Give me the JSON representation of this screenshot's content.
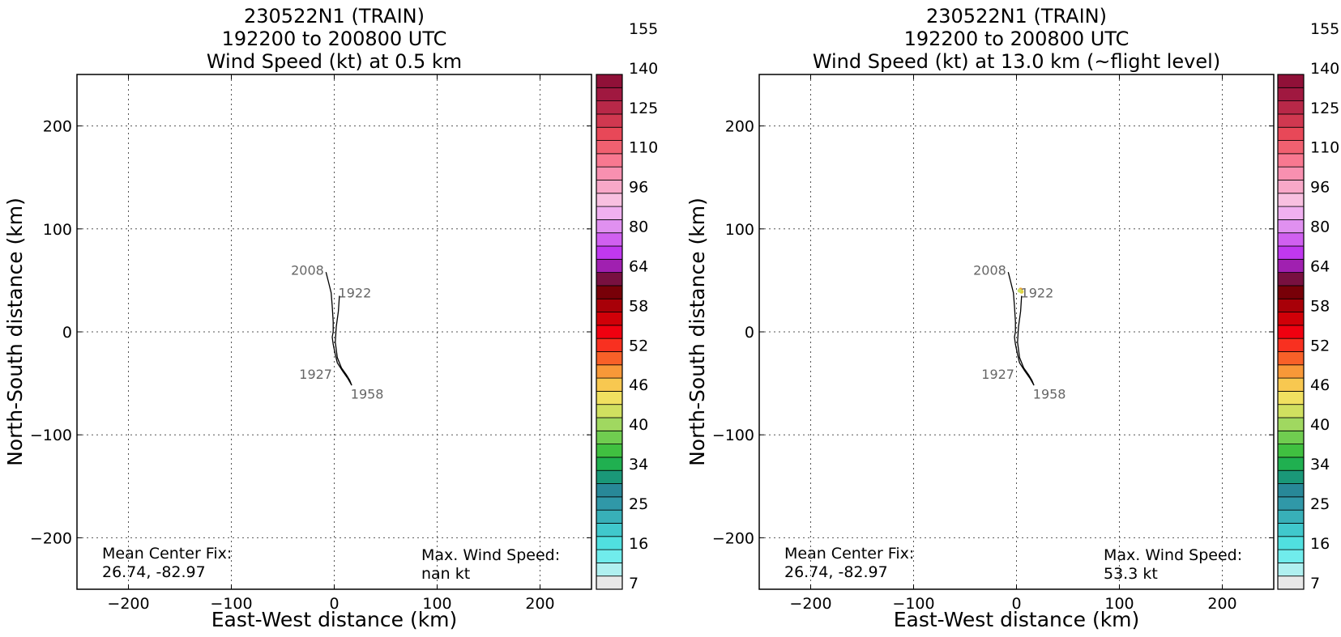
{
  "colorbar": {
    "colors": [
      "#e8e8e8",
      "#b0f0f0",
      "#70ecec",
      "#50e0e0",
      "#40c8cc",
      "#38b0b8",
      "#3098a8",
      "#288898",
      "#1a9878",
      "#20b050",
      "#40c040",
      "#70cc50",
      "#a0d860",
      "#d0e060",
      "#f0e060",
      "#f8c850",
      "#f89838",
      "#f86028",
      "#f83020",
      "#f00010",
      "#d00008",
      "#a80008",
      "#780008",
      "#781040",
      "#a020b0",
      "#c038f0",
      "#d060f0",
      "#e090f0",
      "#f0b0f0",
      "#f8c0e0",
      "#f8a8c8",
      "#f890b0",
      "#f87890",
      "#f06070",
      "#e84858",
      "#d03850",
      "#b82848",
      "#a01840",
      "#901038"
    ],
    "tick_labels": [
      "7",
      "16",
      "25",
      "34",
      "40",
      "46",
      "52",
      "58",
      "64",
      "80",
      "96",
      "110",
      "125",
      "140",
      "155"
    ]
  },
  "labels": {
    "ylabel": "North-South distance (km)",
    "xlabel": "East-West distance (km)",
    "xticks": [
      "−200",
      "−100",
      "0",
      "100",
      "200"
    ],
    "yticks": [
      "200",
      "100",
      "0",
      "−100",
      "−200"
    ]
  },
  "chart_data": [
    {
      "type": "line",
      "title_lines": [
        "230522N1 (TRAIN)",
        "192200 to 200800 UTC",
        "Wind Speed (kt) at 0.5 km"
      ],
      "xlabel": "East-West distance (km)",
      "ylabel": "North-South distance (km)",
      "xlim": [
        -250,
        250
      ],
      "ylim": [
        -250,
        250
      ],
      "xticks": [
        -200,
        -100,
        0,
        100,
        200
      ],
      "yticks": [
        200,
        100,
        0,
        -100,
        -200
      ],
      "grid": true,
      "track": [
        [
          5,
          35
        ],
        [
          4,
          20
        ],
        [
          2,
          5
        ],
        [
          1,
          -10
        ],
        [
          3,
          -25
        ],
        [
          7,
          -35
        ],
        [
          12,
          -42
        ],
        [
          15,
          -47
        ],
        [
          17,
          -52
        ],
        [
          13,
          -45
        ],
        [
          8,
          -38
        ],
        [
          3,
          -30
        ],
        [
          1,
          -22
        ],
        [
          -1,
          -12
        ],
        [
          -2,
          -5
        ],
        [
          -1,
          0
        ],
        [
          -1,
          10
        ],
        [
          -2,
          25
        ],
        [
          -3,
          38
        ],
        [
          -6,
          50
        ],
        [
          -8,
          58
        ]
      ],
      "track_labels": [
        {
          "text": "2008",
          "x": -26,
          "y": 60
        },
        {
          "text": "1922",
          "x": 20,
          "y": 38
        },
        {
          "text": "1927",
          "x": -18,
          "y": -41
        },
        {
          "text": "1958",
          "x": 32,
          "y": -60
        }
      ],
      "annotations": {
        "center_fix_label": "Mean Center Fix:",
        "center_fix_value": "26.74, -82.97",
        "max_wind_label": "Max. Wind Speed:",
        "max_wind_value": "nan kt"
      },
      "scatter_points": []
    },
    {
      "type": "line",
      "title_lines": [
        "230522N1 (TRAIN)",
        "192200 to 200800 UTC",
        "Wind Speed (kt) at 13.0 km (~flight level)"
      ],
      "xlabel": "East-West distance (km)",
      "ylabel": "North-South distance (km)",
      "xlim": [
        -250,
        250
      ],
      "ylim": [
        -250,
        250
      ],
      "xticks": [
        -200,
        -100,
        0,
        100,
        200
      ],
      "yticks": [
        200,
        100,
        0,
        -100,
        -200
      ],
      "grid": true,
      "track": [
        [
          5,
          35
        ],
        [
          4,
          20
        ],
        [
          2,
          5
        ],
        [
          1,
          -10
        ],
        [
          3,
          -25
        ],
        [
          7,
          -35
        ],
        [
          12,
          -42
        ],
        [
          15,
          -47
        ],
        [
          17,
          -52
        ],
        [
          13,
          -45
        ],
        [
          8,
          -38
        ],
        [
          3,
          -30
        ],
        [
          1,
          -22
        ],
        [
          -1,
          -12
        ],
        [
          -2,
          -5
        ],
        [
          -1,
          0
        ],
        [
          -1,
          10
        ],
        [
          -2,
          25
        ],
        [
          -3,
          38
        ],
        [
          -6,
          50
        ],
        [
          -8,
          58
        ]
      ],
      "track_labels": [
        {
          "text": "2008",
          "x": -26,
          "y": 60
        },
        {
          "text": "1922",
          "x": 20,
          "y": 38
        },
        {
          "text": "1927",
          "x": -18,
          "y": -41
        },
        {
          "text": "1958",
          "x": 32,
          "y": -60
        }
      ],
      "annotations": {
        "center_fix_label": "Mean Center Fix:",
        "center_fix_value": "26.74, -82.97",
        "max_wind_label": "Max. Wind Speed:",
        "max_wind_value": "53.3 kt"
      },
      "scatter_points": [
        {
          "x": 4,
          "y": 41,
          "color": "#f0a030"
        },
        {
          "x": 5,
          "y": 39,
          "color": "#e0d040"
        },
        {
          "x": 3,
          "y": 40,
          "color": "#d0e060"
        }
      ]
    }
  ]
}
